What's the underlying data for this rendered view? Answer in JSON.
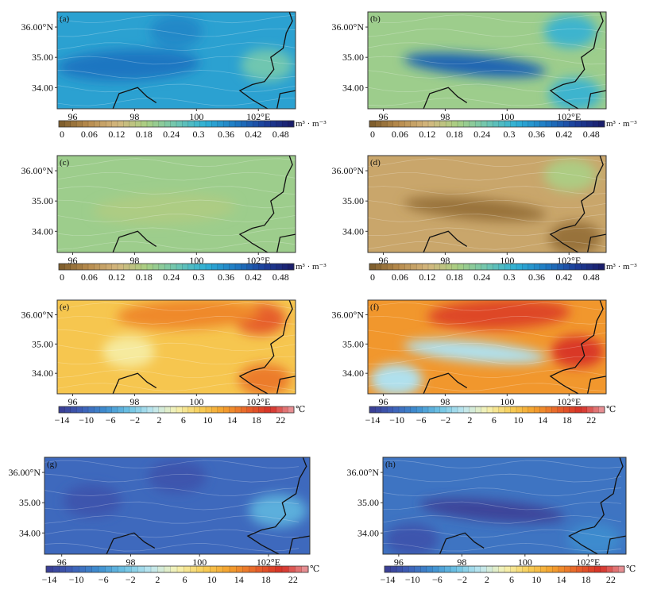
{
  "chart_data": [
    {
      "type": "heatmap",
      "panel_label": "(a)",
      "y_ticks": [
        "36.00°N",
        "35.00",
        "34.00"
      ],
      "x_ticks": [
        "96",
        "98",
        "100",
        "102°E"
      ],
      "colorbar": {
        "ticks": [
          "0",
          "0.06",
          "0.12",
          "0.18",
          "0.24",
          "0.3",
          "0.36",
          "0.42",
          "0.48"
        ],
        "unit": "m³ · m⁻³",
        "range": [
          0,
          0.5
        ],
        "colors": [
          "#7a5a2a",
          "#b88c4e",
          "#d4b77f",
          "#a8cf83",
          "#6fc6b0",
          "#2fb0d6",
          "#1f7bc4",
          "#1d3f9a",
          "#1a1a66"
        ]
      },
      "background_level": 0.33,
      "color_blobs": [
        {
          "level": 0.38,
          "shape": "band",
          "location": "centre-west",
          "note": "elongated high-moisture band"
        },
        {
          "level": 0.36,
          "shape": "patch",
          "location": "north-centre"
        },
        {
          "level": 0.25,
          "shape": "patch",
          "location": "east"
        }
      ]
    },
    {
      "type": "heatmap",
      "panel_label": "(b)",
      "y_ticks": [
        "36.00°N",
        "35.00",
        "34.00"
      ],
      "x_ticks": [
        "96",
        "98",
        "100",
        "102°E"
      ],
      "colorbar": {
        "ticks": [
          "0",
          "0.06",
          "0.12",
          "0.18",
          "0.24",
          "0.3",
          "0.36",
          "0.42",
          "0.48"
        ],
        "unit": "m³ · m⁻³",
        "range": [
          0,
          0.5
        ],
        "colors": [
          "#7a5a2a",
          "#b88c4e",
          "#d4b77f",
          "#a8cf83",
          "#6fc6b0",
          "#2fb0d6",
          "#1f7bc4",
          "#1d3f9a",
          "#1a1a66"
        ]
      },
      "background_level": 0.2,
      "color_blobs": [
        {
          "level": 0.4,
          "shape": "streak",
          "location": "centre",
          "note": "patchy high-moisture belt"
        },
        {
          "level": 0.3,
          "shape": "patch",
          "location": "north-east"
        },
        {
          "level": 0.3,
          "shape": "patch",
          "location": "south-east"
        }
      ]
    },
    {
      "type": "heatmap",
      "panel_label": "(c)",
      "y_ticks": [
        "36.00°N",
        "35.00",
        "34.00"
      ],
      "x_ticks": [
        "96",
        "98",
        "100",
        "102°E"
      ],
      "colorbar": {
        "ticks": [
          "0",
          "0.06",
          "0.12",
          "0.18",
          "0.24",
          "0.3",
          "0.36",
          "0.42",
          "0.48"
        ],
        "unit": "m³ · m⁻³",
        "range": [
          0,
          0.5
        ],
        "colors": [
          "#7a5a2a",
          "#b88c4e",
          "#d4b77f",
          "#a8cf83",
          "#6fc6b0",
          "#2fb0d6",
          "#1f7bc4",
          "#1d3f9a",
          "#1a1a66"
        ]
      },
      "background_level": 0.2,
      "color_blobs": [
        {
          "level": 0.18,
          "shape": "band",
          "location": "centre"
        }
      ]
    },
    {
      "type": "heatmap",
      "panel_label": "(d)",
      "y_ticks": [
        "36.00°N",
        "35.00",
        "34.00"
      ],
      "x_ticks": [
        "96",
        "98",
        "100",
        "102°E"
      ],
      "colorbar": {
        "ticks": [
          "0",
          "0.06",
          "0.12",
          "0.18",
          "0.24",
          "0.3",
          "0.36",
          "0.42",
          "0.48"
        ],
        "unit": "m³ · m⁻³",
        "range": [
          0,
          0.5
        ],
        "colors": [
          "#7a5a2a",
          "#b88c4e",
          "#d4b77f",
          "#a8cf83",
          "#6fc6b0",
          "#2fb0d6",
          "#1f7bc4",
          "#1d3f9a",
          "#1a1a66"
        ]
      },
      "background_level": 0.1,
      "color_blobs": [
        {
          "level": 0.03,
          "shape": "streak",
          "location": "centre",
          "note": "dry belt"
        },
        {
          "level": 0.18,
          "shape": "patch",
          "location": "north-east"
        },
        {
          "level": 0.03,
          "shape": "patch",
          "location": "south-east"
        }
      ]
    },
    {
      "type": "heatmap",
      "panel_label": "(e)",
      "y_ticks": [
        "36.00°N",
        "35.00",
        "34.00"
      ],
      "x_ticks": [
        "96",
        "98",
        "100",
        "102°E"
      ],
      "colorbar": {
        "ticks": [
          "−14",
          "−10",
          "−6",
          "−2",
          "2",
          "6",
          "10",
          "14",
          "18",
          "22"
        ],
        "unit": "℃",
        "range": [
          -16,
          26
        ],
        "colors": [
          "#3b3b91",
          "#3e60b8",
          "#3e8fd0",
          "#6ec3e4",
          "#bfe7ef",
          "#f6f2b4",
          "#f7cf57",
          "#f3a02d",
          "#e8642a",
          "#d62f26",
          "#e89ca1"
        ]
      },
      "background_level": 10,
      "color_blobs": [
        {
          "level": 6,
          "shape": "patch",
          "location": "centre-west"
        },
        {
          "level": 18,
          "shape": "patch",
          "location": "north-east"
        },
        {
          "level": 15,
          "shape": "band",
          "location": "north"
        },
        {
          "level": 16,
          "shape": "patch",
          "location": "south-east"
        }
      ]
    },
    {
      "type": "heatmap",
      "panel_label": "(f)",
      "y_ticks": [
        "36.00°N",
        "35.00",
        "34.00"
      ],
      "x_ticks": [
        "96",
        "98",
        "100",
        "102°E"
      ],
      "colorbar": {
        "ticks": [
          "−14",
          "−10",
          "−6",
          "−2",
          "2",
          "6",
          "10",
          "14",
          "18",
          "22"
        ],
        "unit": "℃",
        "range": [
          -16,
          26
        ],
        "colors": [
          "#3b3b91",
          "#3e60b8",
          "#3e8fd0",
          "#6ec3e4",
          "#bfe7ef",
          "#f6f2b4",
          "#f7cf57",
          "#f3a02d",
          "#e8642a",
          "#d62f26",
          "#e89ca1"
        ]
      },
      "background_level": 14,
      "color_blobs": [
        {
          "level": 20,
          "shape": "band",
          "location": "north",
          "note": "warm band"
        },
        {
          "level": 0,
          "shape": "streak",
          "location": "centre",
          "note": "cold belt"
        },
        {
          "level": 0,
          "shape": "patch",
          "location": "south-west"
        },
        {
          "level": 21,
          "shape": "patch",
          "location": "east"
        }
      ]
    },
    {
      "type": "heatmap",
      "panel_label": "(g)",
      "y_ticks": [
        "36.00°N",
        "35.00",
        "34.00"
      ],
      "x_ticks": [
        "96",
        "98",
        "100",
        "102°E"
      ],
      "colorbar": {
        "ticks": [
          "−14",
          "−10",
          "−6",
          "−2",
          "2",
          "6",
          "10",
          "14",
          "18",
          "22"
        ],
        "unit": "℃",
        "range": [
          -16,
          26
        ],
        "colors": [
          "#3b3b91",
          "#3e60b8",
          "#3e8fd0",
          "#6ec3e4",
          "#bfe7ef",
          "#f6f2b4",
          "#f7cf57",
          "#f3a02d",
          "#e8642a",
          "#d62f26",
          "#e89ca1"
        ]
      },
      "background_level": -11,
      "color_blobs": [
        {
          "level": -13,
          "shape": "patch",
          "location": "west"
        },
        {
          "level": -13,
          "shape": "patch",
          "location": "north-centre"
        },
        {
          "level": -5,
          "shape": "patch",
          "location": "east"
        }
      ]
    },
    {
      "type": "heatmap",
      "panel_label": "(h)",
      "y_ticks": [
        "36.00°N",
        "35.00",
        "34.00"
      ],
      "x_ticks": [
        "96",
        "98",
        "100",
        "102°E"
      ],
      "colorbar": {
        "ticks": [
          "−14",
          "−10",
          "−6",
          "−2",
          "2",
          "6",
          "10",
          "14",
          "18",
          "22"
        ],
        "unit": "℃",
        "range": [
          -16,
          26
        ],
        "colors": [
          "#3b3b91",
          "#3e60b8",
          "#3e8fd0",
          "#6ec3e4",
          "#bfe7ef",
          "#f6f2b4",
          "#f7cf57",
          "#f3a02d",
          "#e8642a",
          "#d62f26",
          "#e89ca1"
        ]
      },
      "background_level": -10,
      "color_blobs": [
        {
          "level": -15,
          "shape": "streak",
          "location": "centre",
          "note": "coldest belt"
        },
        {
          "level": -8,
          "shape": "patch",
          "location": "south-east"
        },
        {
          "level": -13,
          "shape": "patch",
          "location": "south-west"
        }
      ]
    }
  ]
}
